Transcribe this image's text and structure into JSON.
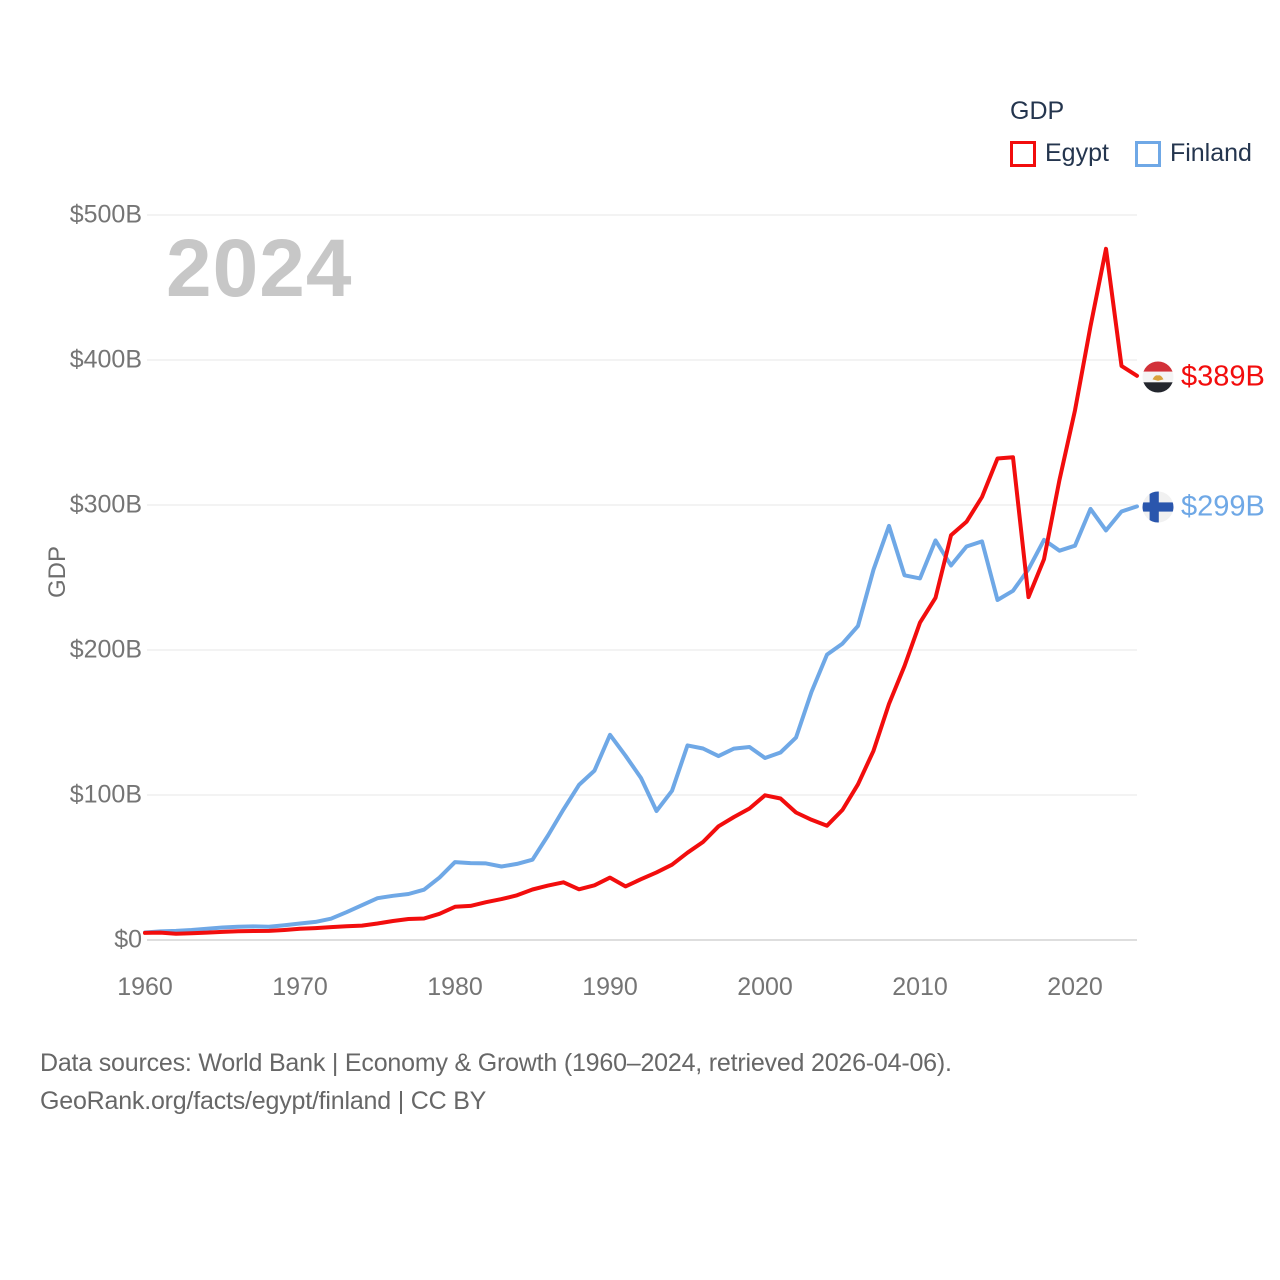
{
  "watermark_year": "2024",
  "legend": {
    "title": "GDP",
    "items": [
      {
        "label": "Egypt",
        "color": "#f20d0d"
      },
      {
        "label": "Finland",
        "color": "#6fa8e6"
      }
    ]
  },
  "y_axis": {
    "title": "GDP",
    "ticks": [
      "$0",
      "$100B",
      "$200B",
      "$300B",
      "$400B",
      "$500B"
    ]
  },
  "x_axis": {
    "ticks": [
      "1960",
      "1970",
      "1980",
      "1990",
      "2000",
      "2010",
      "2020"
    ]
  },
  "end_labels": {
    "egypt": "$389B",
    "finland": "$299B"
  },
  "footer": {
    "line1": "Data sources: World Bank | Economy & Growth (1960–2024, retrieved 2026-04-06).",
    "line2": "GeoRank.org/facts/egypt/finland | CC BY"
  },
  "chart_data": {
    "type": "line",
    "title": "GDP",
    "ylabel": "GDP",
    "unit": "billion USD",
    "ylim": [
      0,
      500
    ],
    "y_tick_values": [
      0,
      100,
      200,
      300,
      400,
      500
    ],
    "x_tick_values": [
      1960,
      1970,
      1980,
      1990,
      2000,
      2010,
      2020
    ],
    "grid": "horizontal",
    "legend_position": "top-right",
    "x": [
      1960,
      1961,
      1962,
      1963,
      1964,
      1965,
      1966,
      1967,
      1968,
      1969,
      1970,
      1971,
      1972,
      1973,
      1974,
      1975,
      1976,
      1977,
      1978,
      1979,
      1980,
      1981,
      1982,
      1983,
      1984,
      1985,
      1986,
      1987,
      1988,
      1989,
      1990,
      1991,
      1992,
      1993,
      1994,
      1995,
      1996,
      1997,
      1998,
      1999,
      2000,
      2001,
      2002,
      2003,
      2004,
      2005,
      2006,
      2007,
      2008,
      2009,
      2010,
      2011,
      2012,
      2013,
      2014,
      2015,
      2016,
      2017,
      2018,
      2019,
      2020,
      2021,
      2022,
      2023,
      2024
    ],
    "series": [
      {
        "name": "Egypt",
        "color": "#f20d0d",
        "values": [
          4.9,
          5.1,
          4.3,
          4.6,
          5.1,
          5.6,
          6.0,
          6.2,
          6.3,
          6.9,
          7.7,
          8.2,
          8.9,
          9.5,
          9.9,
          11.4,
          13.1,
          14.5,
          14.8,
          18.1,
          22.9,
          23.5,
          26.1,
          28.2,
          30.8,
          34.8,
          37.5,
          39.8,
          35.0,
          37.7,
          43.0,
          37.0,
          41.9,
          46.6,
          51.9,
          60.2,
          67.6,
          78.4,
          84.8,
          90.7,
          99.8,
          97.6,
          87.9,
          82.9,
          78.8,
          89.7,
          107.4,
          130.5,
          162.8,
          189.0,
          218.9,
          236.0,
          279.1,
          288.4,
          305.5,
          332.1,
          332.9,
          236.5,
          262.6,
          317.4,
          365.3,
          423.3,
          476.7,
          395.9,
          389.1
        ]
      },
      {
        "name": "Finland",
        "color": "#6fa8e6",
        "values": [
          5.2,
          5.9,
          6.3,
          6.9,
          7.8,
          8.6,
          9.2,
          9.4,
          9.1,
          10.2,
          11.4,
          12.5,
          14.7,
          19.2,
          24.0,
          28.8,
          30.5,
          31.7,
          34.7,
          43.0,
          53.7,
          53.0,
          52.8,
          50.7,
          52.5,
          55.4,
          72.1,
          90.1,
          107.0,
          116.8,
          141.5,
          127.1,
          111.7,
          89.0,
          102.9,
          134.2,
          132.1,
          126.8,
          132.0,
          133.1,
          125.5,
          129.3,
          139.6,
          171.1,
          196.8,
          204.4,
          216.6,
          255.4,
          285.6,
          251.5,
          249.4,
          275.6,
          258.3,
          271.4,
          274.9,
          234.5,
          240.8,
          255.7,
          275.9,
          268.5,
          271.9,
          297.3,
          282.5,
          295.5,
          299.0
        ]
      }
    ],
    "end_markers": [
      {
        "series": "Egypt",
        "label": "$389B",
        "flag": "egypt"
      },
      {
        "series": "Finland",
        "label": "$299B",
        "flag": "finland"
      }
    ]
  }
}
